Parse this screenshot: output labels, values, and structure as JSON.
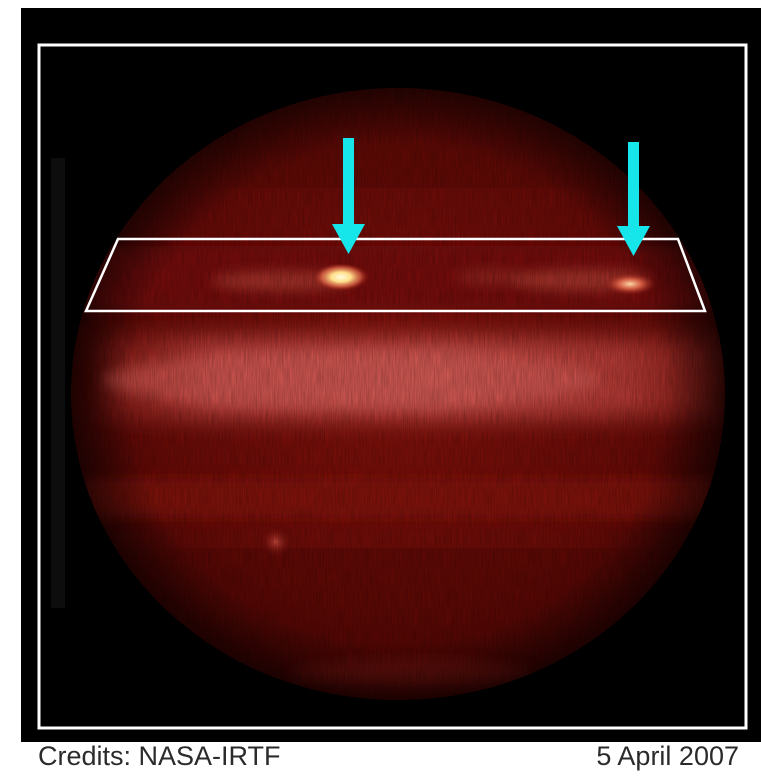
{
  "figure": {
    "credits": "Credits: NASA-IRTF",
    "date": "5 April 2007"
  },
  "colors": {
    "background": "#000000",
    "planet_base": "#6e0b07",
    "planet_band": "#d8524d",
    "hot_spot": "#fff6c8",
    "frame": "#ffffff",
    "highlight_box": "#ffffff",
    "arrows": "#16e6ea",
    "caption_text": "#2b2b2b"
  },
  "annotations": {
    "arrow_count": 2,
    "arrow_direction": "down",
    "frame_shape": "rectangle",
    "highlight_shape": "trapezoid"
  }
}
